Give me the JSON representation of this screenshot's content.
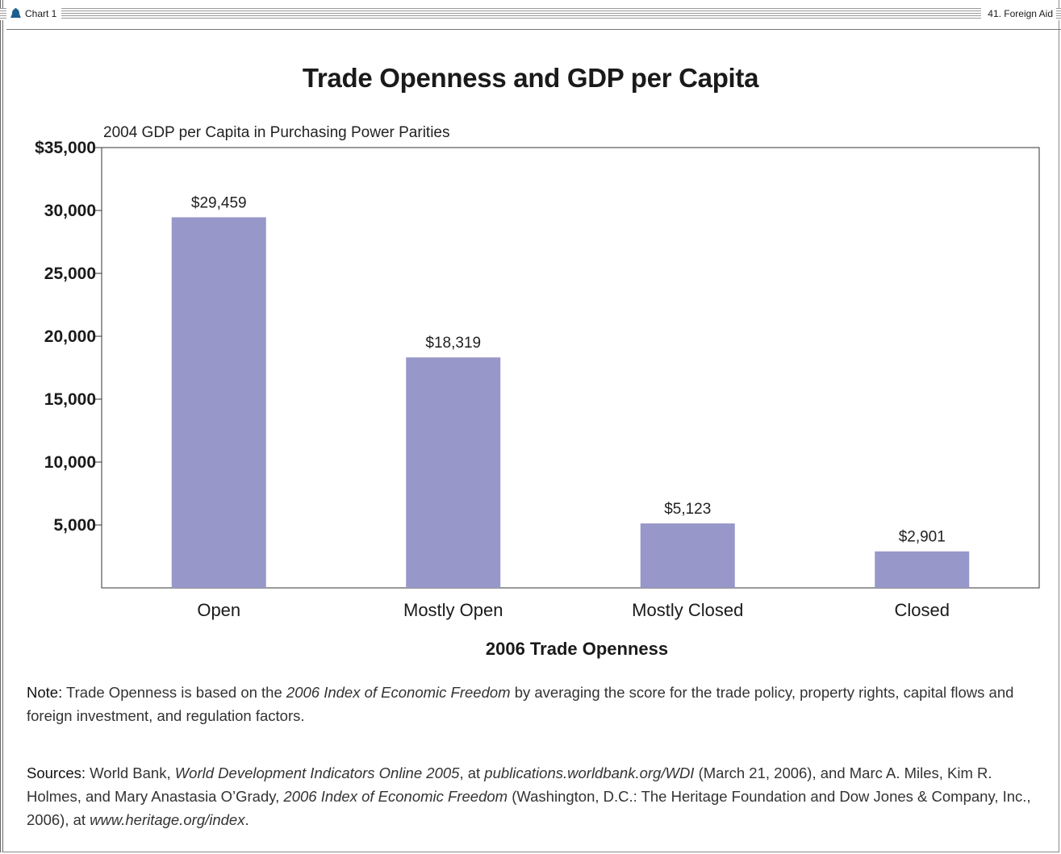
{
  "header": {
    "left_label": "Chart 1",
    "right_label": "41. Foreign Aid"
  },
  "colors": {
    "bar": "#9797c9",
    "icon": "#1f5f8f",
    "axis": "#333333"
  },
  "chart_data": {
    "type": "bar",
    "title": "Trade Openness and GDP per Capita",
    "ylabel": "2004 GDP per Capita in Purchasing Power Parities",
    "xlabel": "2006 Trade Openness",
    "categories": [
      "Open",
      "Mostly Open",
      "Mostly Closed",
      "Closed"
    ],
    "values": [
      29459,
      18319,
      5123,
      2901
    ],
    "data_labels": [
      "$29,459",
      "$18,319",
      "$5,123",
      "$2,901"
    ],
    "ylim": [
      0,
      35000
    ],
    "yticks": [
      5000,
      10000,
      15000,
      20000,
      25000,
      30000,
      35000
    ],
    "ytick_labels": [
      "5,000",
      "10,000",
      "15,000",
      "20,000",
      "25,000",
      "30,000",
      "$35,000"
    ],
    "grid": false,
    "legend": "none"
  },
  "note": {
    "lead": "Note:",
    "text_1": " Trade Openness is based on the ",
    "italic_1": "2006 Index of Economic Freedom",
    "text_2": " by averaging the score for the trade policy, property rights, capital flows and foreign investment, and regulation factors."
  },
  "sources": {
    "lead": "Sources:",
    "text_1": " World Bank, ",
    "italic_1": "World Development Indicators Online 2005",
    "text_2": ", at ",
    "italic_2": "publications.worldbank.org/WDI",
    "text_3": " (March 21, 2006), and Marc A. Miles, Kim R. Holmes, and Mary Anastasia O’Grady, ",
    "italic_3": "2006 Index of Economic Freedom",
    "text_4": " (Washington, D.C.: The Heritage Foundation and Dow Jones & Company, Inc., 2006), at ",
    "italic_4": "www.heritage.org/index",
    "text_5": "."
  }
}
